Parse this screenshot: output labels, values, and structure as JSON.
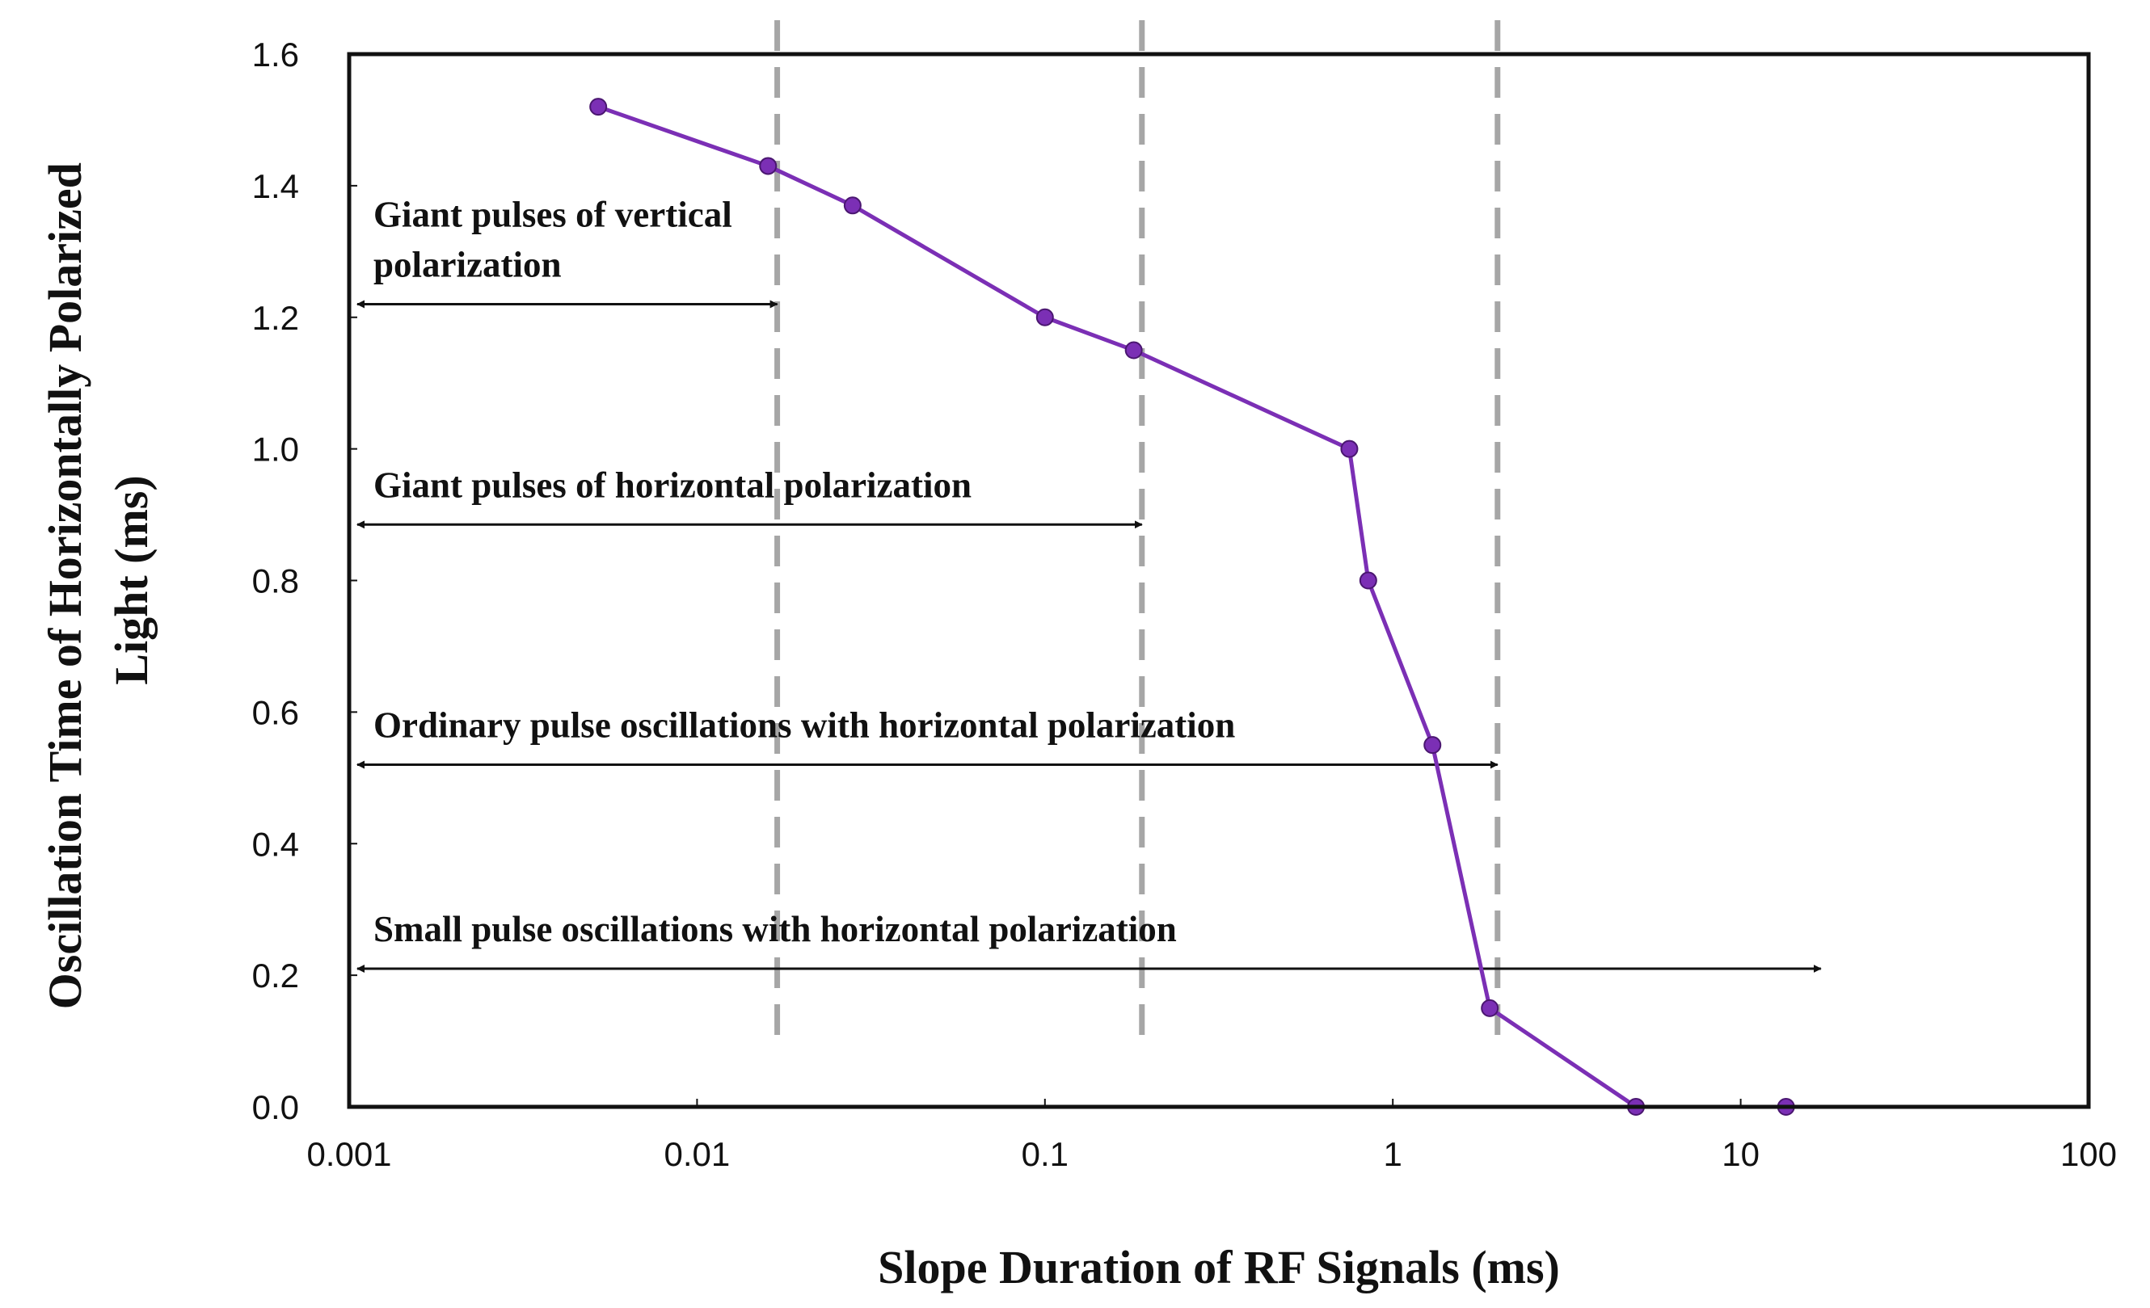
{
  "chart_data": {
    "type": "line",
    "xlabel": "Slope Duration of RF Signals (ms)",
    "ylabel": "Oscillation Time of Horizontally Polarized Light (ms)",
    "ylabel_lines": [
      "Oscillation Time of Horizontally Polarized",
      "Light (ms)"
    ],
    "x_scale": "log",
    "xlim": [
      0.001,
      100
    ],
    "ylim": [
      0,
      1.6
    ],
    "x_ticks": [
      "0.001",
      "0.01",
      "0.1",
      "1",
      "10",
      "100"
    ],
    "y_ticks": [
      "0.0",
      "0.2",
      "0.4",
      "0.6",
      "0.8",
      "1.0",
      "1.2",
      "1.4",
      "1.6"
    ],
    "grid": false,
    "legend": "none",
    "series": [
      {
        "color": "#7B2FB5",
        "points": [
          {
            "x": 0.0052,
            "y": 1.52
          },
          {
            "x": 0.016,
            "y": 1.43
          },
          {
            "x": 0.028,
            "y": 1.37
          },
          {
            "x": 0.1,
            "y": 1.2
          },
          {
            "x": 0.18,
            "y": 1.15
          },
          {
            "x": 0.75,
            "y": 1.0
          },
          {
            "x": 0.85,
            "y": 0.8
          },
          {
            "x": 1.3,
            "y": 0.55
          },
          {
            "x": 1.9,
            "y": 0.15
          },
          {
            "x": 5.0,
            "y": 0.0
          },
          {
            "x": 13.5,
            "y": 0.0
          }
        ]
      }
    ],
    "reference_lines": [
      {
        "x": 0.017
      },
      {
        "x": 0.19
      },
      {
        "x": 2.0
      }
    ],
    "annotations": [
      {
        "lines": [
          "Giant pulses of vertical",
          "polarization"
        ],
        "arrow_y": 1.22,
        "arrow_x_end": 0.017
      },
      {
        "lines": [
          "Giant pulses of horizontal polarization"
        ],
        "arrow_y": 0.885,
        "arrow_x_end": 0.19
      },
      {
        "lines": [
          "Ordinary pulse oscillations with horizontal polarization"
        ],
        "arrow_y": 0.52,
        "arrow_x_end": 2.0
      },
      {
        "lines": [
          "Small pulse oscillations with horizontal polarization"
        ],
        "arrow_y": 0.21,
        "arrow_x_end": 17
      }
    ]
  }
}
